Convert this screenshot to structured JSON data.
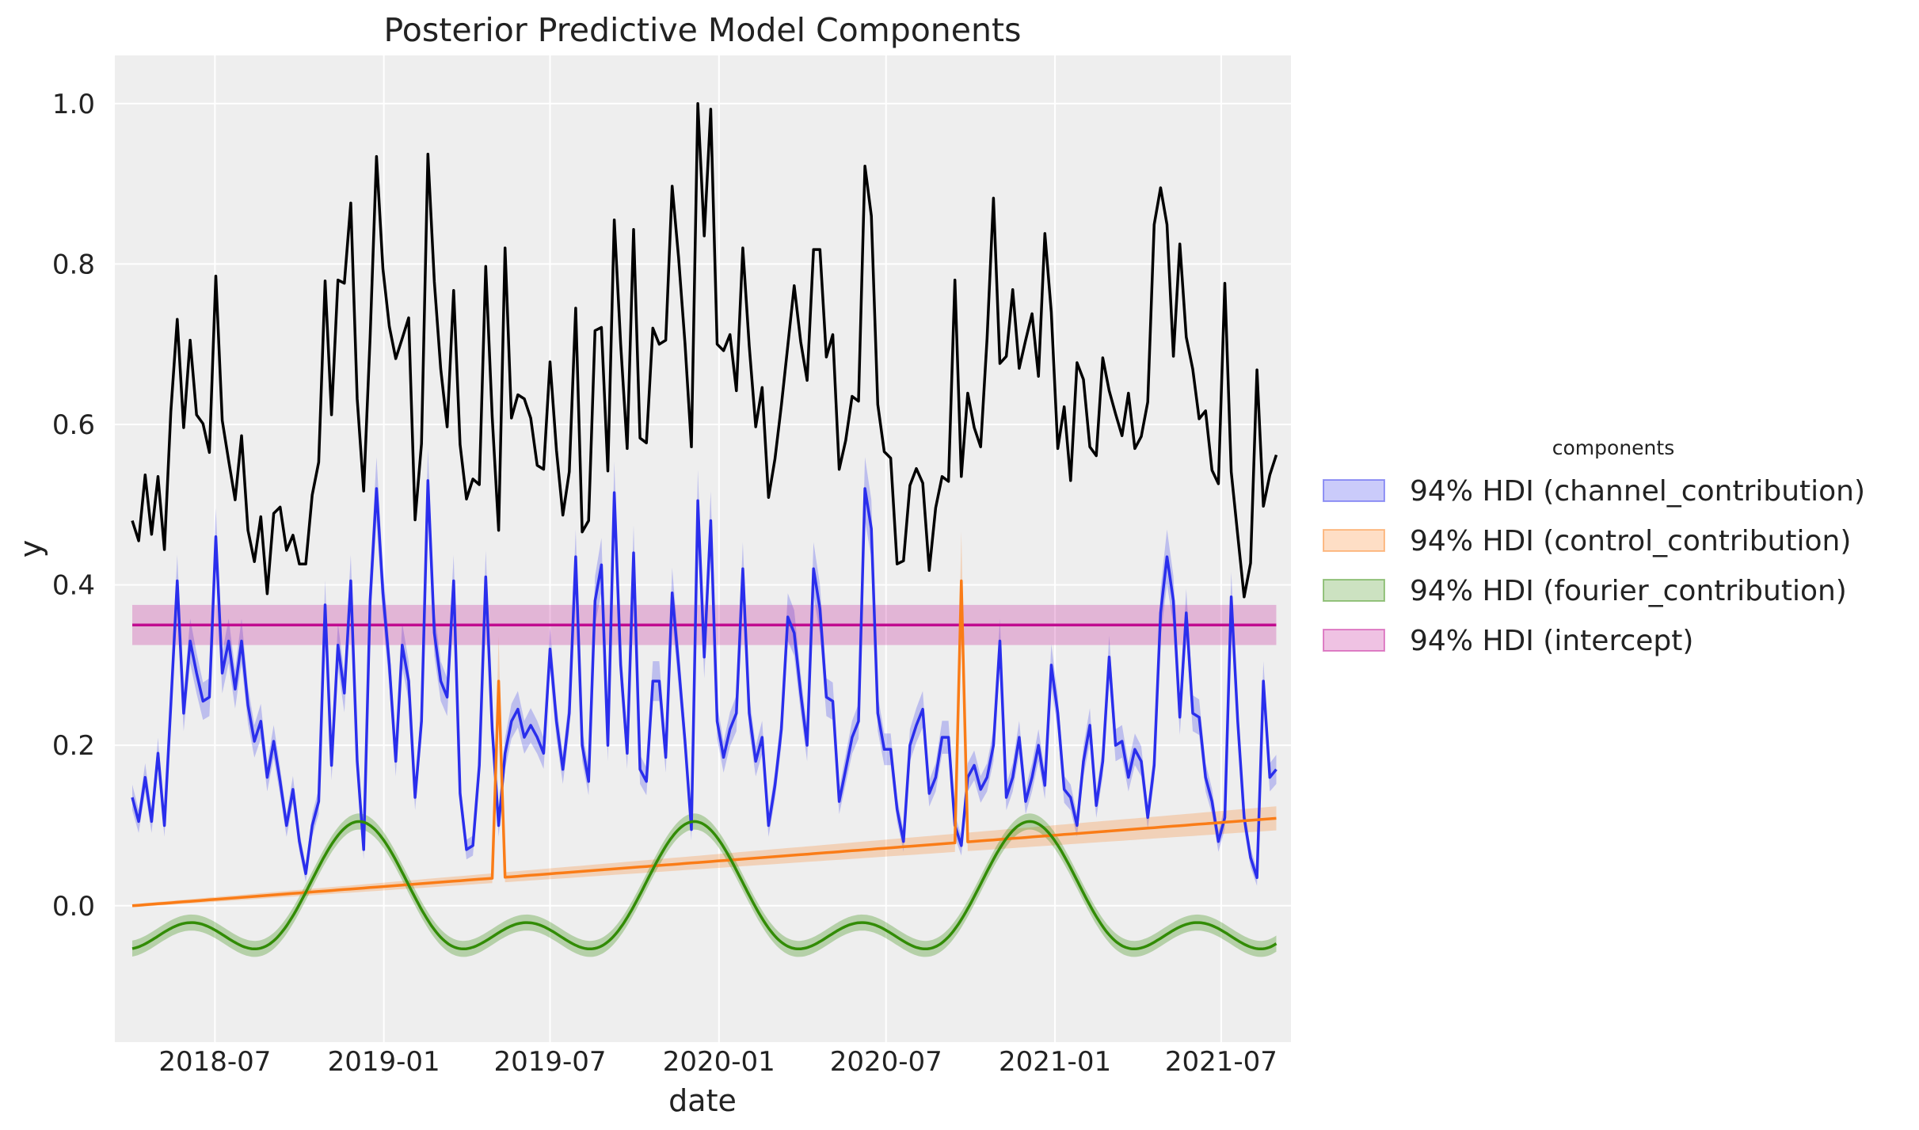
{
  "chart_data": {
    "type": "line",
    "title": "Posterior Predictive Model Components",
    "xlabel": "date",
    "ylabel": "y",
    "xlim": [
      "2018-03-14",
      "2021-09-15"
    ],
    "ylim": [
      -0.17,
      1.06
    ],
    "x_ticks": [
      "2018-07",
      "2019-01",
      "2019-07",
      "2020-01",
      "2020-07",
      "2021-01",
      "2021-07"
    ],
    "y_ticks": [
      "0.0",
      "0.2",
      "0.4",
      "0.6",
      "0.8",
      "1.0"
    ],
    "grid": true,
    "legend_title": "components",
    "legend_position": "center-right outside",
    "x_start": "2018-04-02",
    "x_step_days": 7,
    "series": [
      {
        "name": "",
        "color": "#000000",
        "values": [
          0.48,
          0.455,
          0.537,
          0.463,
          0.535,
          0.444,
          0.616,
          0.731,
          0.596,
          0.705,
          0.612,
          0.601,
          0.565,
          0.785,
          0.605,
          0.555,
          0.506,
          0.586,
          0.468,
          0.429,
          0.485,
          0.389,
          0.489,
          0.497,
          0.443,
          0.462,
          0.426,
          0.426,
          0.512,
          0.553,
          0.779,
          0.612,
          0.78,
          0.776,
          0.876,
          0.632,
          0.517,
          0.708,
          0.934,
          0.794,
          0.722,
          0.682,
          0.707,
          0.733,
          0.481,
          0.576,
          0.937,
          0.778,
          0.669,
          0.597,
          0.767,
          0.575,
          0.507,
          0.532,
          0.525,
          0.797,
          0.609,
          0.468,
          0.82,
          0.608,
          0.637,
          0.632,
          0.608,
          0.549,
          0.544,
          0.678,
          0.568,
          0.487,
          0.541,
          0.745,
          0.466,
          0.48,
          0.717,
          0.721,
          0.542,
          0.855,
          0.7,
          0.57,
          0.843,
          0.583,
          0.577,
          0.72,
          0.7,
          0.705,
          0.897,
          0.808,
          0.701,
          0.572,
          1.0,
          0.835,
          0.993,
          0.7,
          0.692,
          0.712,
          0.642,
          0.82,
          0.698,
          0.597,
          0.646,
          0.509,
          0.557,
          0.624,
          0.698,
          0.773,
          0.703,
          0.655,
          0.818,
          0.818,
          0.684,
          0.712,
          0.544,
          0.58,
          0.635,
          0.629,
          0.922,
          0.86,
          0.625,
          0.566,
          0.558,
          0.426,
          0.43,
          0.524,
          0.545,
          0.527,
          0.418,
          0.496,
          0.535,
          0.529,
          0.78,
          0.535,
          0.639,
          0.596,
          0.572,
          0.707,
          0.882,
          0.676,
          0.685,
          0.768,
          0.67,
          0.705,
          0.738,
          0.66,
          0.838,
          0.74,
          0.57,
          0.622,
          0.53,
          0.677,
          0.656,
          0.572,
          0.561,
          0.683,
          0.642,
          0.613,
          0.586,
          0.639,
          0.57,
          0.585,
          0.628,
          0.849,
          0.895,
          0.849,
          0.685,
          0.825,
          0.709,
          0.669,
          0.607,
          0.617,
          0.543,
          0.526,
          0.776,
          0.541,
          0.462,
          0.385,
          0.427,
          0.668,
          0.498,
          0.537,
          0.562
        ]
      },
      {
        "name": "94% HDI (channel_contribution)",
        "color": "#2a2eec",
        "values": [
          0.135,
          0.105,
          0.16,
          0.105,
          0.19,
          0.1,
          0.25,
          0.405,
          0.24,
          0.33,
          0.29,
          0.255,
          0.26,
          0.46,
          0.29,
          0.33,
          0.27,
          0.33,
          0.25,
          0.205,
          0.23,
          0.16,
          0.205,
          0.155,
          0.1,
          0.145,
          0.08,
          0.04,
          0.1,
          0.13,
          0.375,
          0.175,
          0.325,
          0.265,
          0.405,
          0.18,
          0.07,
          0.38,
          0.52,
          0.39,
          0.3,
          0.18,
          0.325,
          0.28,
          0.135,
          0.23,
          0.53,
          0.34,
          0.28,
          0.26,
          0.405,
          0.14,
          0.07,
          0.075,
          0.175,
          0.41,
          0.22,
          0.1,
          0.19,
          0.23,
          0.245,
          0.21,
          0.225,
          0.21,
          0.19,
          0.32,
          0.23,
          0.17,
          0.24,
          0.435,
          0.2,
          0.155,
          0.38,
          0.425,
          0.2,
          0.515,
          0.3,
          0.19,
          0.44,
          0.17,
          0.155,
          0.28,
          0.28,
          0.185,
          0.39,
          0.3,
          0.205,
          0.095,
          0.505,
          0.31,
          0.48,
          0.23,
          0.185,
          0.22,
          0.24,
          0.42,
          0.24,
          0.18,
          0.21,
          0.1,
          0.15,
          0.22,
          0.36,
          0.34,
          0.265,
          0.2,
          0.42,
          0.37,
          0.26,
          0.255,
          0.13,
          0.17,
          0.21,
          0.23,
          0.52,
          0.47,
          0.24,
          0.195,
          0.195,
          0.12,
          0.08,
          0.2,
          0.225,
          0.245,
          0.14,
          0.16,
          0.21,
          0.21,
          0.1,
          0.075,
          0.16,
          0.175,
          0.145,
          0.16,
          0.2,
          0.33,
          0.135,
          0.16,
          0.21,
          0.13,
          0.16,
          0.2,
          0.15,
          0.3,
          0.24,
          0.145,
          0.135,
          0.1,
          0.18,
          0.225,
          0.125,
          0.18,
          0.31,
          0.2,
          0.205,
          0.16,
          0.195,
          0.18,
          0.11,
          0.175,
          0.365,
          0.435,
          0.38,
          0.235,
          0.365,
          0.24,
          0.235,
          0.16,
          0.13,
          0.08,
          0.11,
          0.385,
          0.23,
          0.11,
          0.06,
          0.035,
          0.28,
          0.16,
          0.17,
          0.225
        ]
      }
    ],
    "hdi_components": [
      {
        "name": "94% HDI (channel_contribution)",
        "color": "#2a2eec"
      },
      {
        "name": "94% HDI (control_contribution)",
        "color": "#fa7c17"
      },
      {
        "name": "94% HDI (fourier_contribution)",
        "color": "#328c06"
      },
      {
        "name": "94% HDI (intercept)",
        "color": "#c10c90"
      }
    ],
    "control_contribution": {
      "trend_start": 0.0,
      "trend_end": 0.109,
      "band_half_width_start": 0.002,
      "band_half_width_end": 0.015,
      "spikes": [
        {
          "index": 57,
          "value": 0.28
        },
        {
          "index": 129,
          "value": 0.405
        }
      ]
    },
    "fourier_contribution": {
      "first_peak": "2018-12-05",
      "peak_value": 0.105,
      "trough_value": -0.105,
      "band_half_width": 0.01
    },
    "intercept": {
      "value": 0.35,
      "lower": 0.325,
      "upper": 0.375
    }
  }
}
